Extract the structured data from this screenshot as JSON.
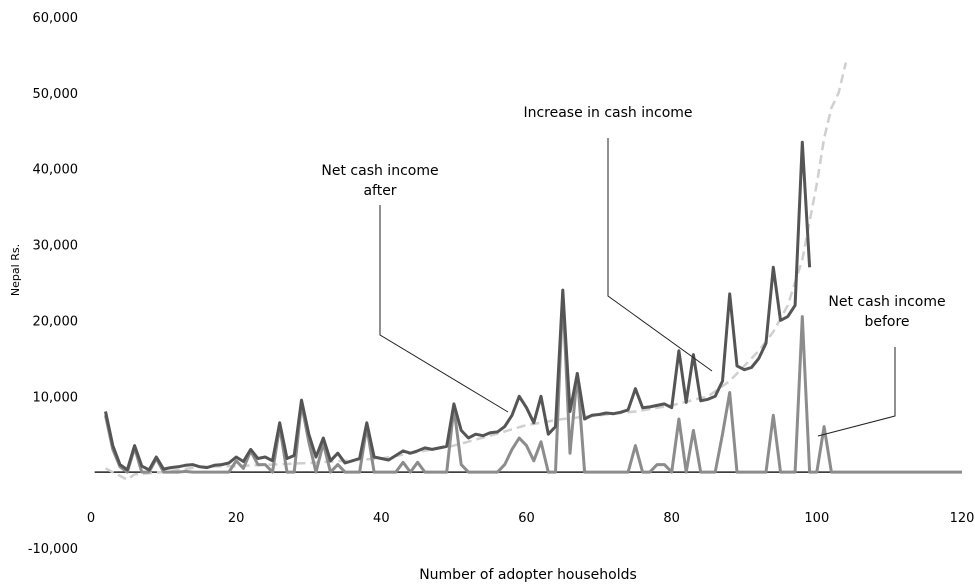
{
  "chart_data": {
    "type": "line",
    "xlabel": "Number of adopter households",
    "ylabel": "Nepal Rs.",
    "xlim": [
      0,
      120
    ],
    "ylim": [
      -10000,
      60000
    ],
    "x_ticks": [
      "0",
      "20",
      "40",
      "60",
      "80",
      "100",
      "120"
    ],
    "y_ticks": [
      "-10,000",
      "",
      "10,000",
      "20,000",
      "30,000",
      "40,000",
      "50,000",
      "60,000"
    ],
    "grid": false,
    "legend": "none",
    "colors": {
      "after": "#555555",
      "before": "#8c8c8c",
      "increase": "#cfcfcf",
      "axis": "#222222"
    },
    "annotations": [
      {
        "lines": [
          "Net cash income",
          "after"
        ]
      },
      {
        "lines": [
          "Increase in cash income"
        ]
      },
      {
        "lines": [
          "Net cash income",
          "before"
        ]
      }
    ],
    "series": [
      {
        "key": "after",
        "values": [
          [
            2,
            8000
          ],
          [
            3,
            3500
          ],
          [
            4,
            1000
          ],
          [
            5,
            300
          ],
          [
            6,
            3500
          ],
          [
            7,
            800
          ],
          [
            8,
            300
          ],
          [
            9,
            2000
          ],
          [
            10,
            400
          ],
          [
            11,
            600
          ],
          [
            12,
            700
          ],
          [
            13,
            900
          ],
          [
            14,
            1000
          ],
          [
            15,
            700
          ],
          [
            16,
            600
          ],
          [
            17,
            900
          ],
          [
            18,
            1000
          ],
          [
            19,
            1200
          ],
          [
            20,
            2000
          ],
          [
            21,
            1400
          ],
          [
            22,
            3000
          ],
          [
            23,
            1800
          ],
          [
            24,
            2000
          ],
          [
            25,
            1500
          ],
          [
            26,
            6500
          ],
          [
            27,
            1800
          ],
          [
            28,
            2200
          ],
          [
            29,
            9500
          ],
          [
            30,
            5000
          ],
          [
            31,
            2000
          ],
          [
            32,
            4500
          ],
          [
            33,
            1500
          ],
          [
            34,
            2500
          ],
          [
            35,
            1200
          ],
          [
            36,
            1500
          ],
          [
            37,
            1800
          ],
          [
            38,
            6500
          ],
          [
            39,
            2000
          ],
          [
            40,
            1800
          ],
          [
            41,
            1600
          ],
          [
            42,
            2200
          ],
          [
            43,
            2800
          ],
          [
            44,
            2500
          ],
          [
            45,
            2800
          ],
          [
            46,
            3200
          ],
          [
            47,
            3000
          ],
          [
            48,
            3200
          ],
          [
            49,
            3400
          ],
          [
            50,
            9000
          ],
          [
            51,
            5500
          ],
          [
            52,
            4500
          ],
          [
            53,
            5000
          ],
          [
            54,
            4800
          ],
          [
            55,
            5200
          ],
          [
            56,
            5300
          ],
          [
            57,
            6000
          ],
          [
            58,
            7500
          ],
          [
            59,
            10000
          ],
          [
            60,
            8500
          ],
          [
            61,
            6500
          ],
          [
            62,
            10000
          ],
          [
            63,
            5000
          ],
          [
            64,
            6000
          ],
          [
            65,
            24000
          ],
          [
            66,
            8000
          ],
          [
            67,
            13000
          ],
          [
            68,
            7000
          ],
          [
            69,
            7500
          ],
          [
            70,
            7600
          ],
          [
            71,
            7800
          ],
          [
            72,
            7700
          ],
          [
            73,
            7900
          ],
          [
            74,
            8200
          ],
          [
            75,
            11000
          ],
          [
            76,
            8500
          ],
          [
            77,
            8600
          ],
          [
            78,
            8800
          ],
          [
            79,
            9000
          ],
          [
            80,
            8500
          ],
          [
            81,
            16000
          ],
          [
            82,
            9200
          ],
          [
            83,
            15500
          ],
          [
            84,
            9400
          ],
          [
            85,
            9600
          ],
          [
            86,
            10000
          ],
          [
            87,
            12000
          ],
          [
            88,
            23500
          ],
          [
            89,
            14000
          ],
          [
            90,
            13500
          ],
          [
            91,
            13800
          ],
          [
            92,
            15000
          ],
          [
            93,
            17000
          ],
          [
            94,
            27000
          ],
          [
            95,
            20000
          ],
          [
            96,
            20500
          ],
          [
            97,
            22000
          ],
          [
            98,
            43500
          ],
          [
            99,
            27000
          ]
        ]
      },
      {
        "key": "before",
        "values": [
          [
            2,
            7500
          ],
          [
            3,
            3000
          ],
          [
            4,
            700
          ],
          [
            5,
            0
          ],
          [
            6,
            3200
          ],
          [
            7,
            0
          ],
          [
            8,
            0
          ],
          [
            9,
            1800
          ],
          [
            10,
            0
          ],
          [
            11,
            0
          ],
          [
            12,
            0
          ],
          [
            13,
            100
          ],
          [
            14,
            0
          ],
          [
            15,
            0
          ],
          [
            16,
            0
          ],
          [
            17,
            0
          ],
          [
            18,
            0
          ],
          [
            19,
            0
          ],
          [
            20,
            1500
          ],
          [
            21,
            500
          ],
          [
            22,
            2800
          ],
          [
            23,
            1000
          ],
          [
            24,
            1000
          ],
          [
            25,
            0
          ],
          [
            26,
            6000
          ],
          [
            27,
            0
          ],
          [
            28,
            0
          ],
          [
            29,
            9000
          ],
          [
            30,
            4000
          ],
          [
            31,
            0
          ],
          [
            32,
            3800
          ],
          [
            33,
            0
          ],
          [
            34,
            1000
          ],
          [
            35,
            0
          ],
          [
            36,
            0
          ],
          [
            37,
            0
          ],
          [
            38,
            6000
          ],
          [
            39,
            0
          ],
          [
            40,
            0
          ],
          [
            41,
            0
          ],
          [
            42,
            0
          ],
          [
            43,
            1300
          ],
          [
            44,
            0
          ],
          [
            45,
            1300
          ],
          [
            46,
            0
          ],
          [
            47,
            0
          ],
          [
            48,
            0
          ],
          [
            49,
            0
          ],
          [
            50,
            8500
          ],
          [
            51,
            1000
          ],
          [
            52,
            0
          ],
          [
            53,
            0
          ],
          [
            54,
            0
          ],
          [
            55,
            0
          ],
          [
            56,
            0
          ],
          [
            57,
            1000
          ],
          [
            58,
            3000
          ],
          [
            59,
            4500
          ],
          [
            60,
            3500
          ],
          [
            61,
            1500
          ],
          [
            62,
            4000
          ],
          [
            63,
            0
          ],
          [
            64,
            0
          ],
          [
            65,
            23500
          ],
          [
            66,
            2500
          ],
          [
            67,
            13000
          ],
          [
            68,
            0
          ],
          [
            69,
            0
          ],
          [
            70,
            0
          ],
          [
            71,
            0
          ],
          [
            72,
            0
          ],
          [
            73,
            0
          ],
          [
            74,
            0
          ],
          [
            75,
            3500
          ],
          [
            76,
            0
          ],
          [
            77,
            0
          ],
          [
            78,
            1000
          ],
          [
            79,
            1000
          ],
          [
            80,
            0
          ],
          [
            81,
            7000
          ],
          [
            82,
            0
          ],
          [
            83,
            5500
          ],
          [
            84,
            0
          ],
          [
            85,
            0
          ],
          [
            86,
            0
          ],
          [
            87,
            5000
          ],
          [
            88,
            10500
          ],
          [
            89,
            0
          ],
          [
            90,
            0
          ],
          [
            91,
            0
          ],
          [
            92,
            0
          ],
          [
            93,
            0
          ],
          [
            94,
            7500
          ],
          [
            95,
            0
          ],
          [
            96,
            0
          ],
          [
            97,
            0
          ],
          [
            98,
            20500
          ],
          [
            99,
            0
          ],
          [
            100,
            0
          ],
          [
            101,
            6000
          ],
          [
            102,
            0
          ],
          [
            103,
            0
          ],
          [
            104,
            0
          ],
          [
            120,
            0
          ]
        ]
      },
      {
        "key": "increase",
        "values": [
          [
            2,
            500
          ],
          [
            4,
            -500
          ],
          [
            5,
            -1000
          ],
          [
            6,
            -300
          ],
          [
            10,
            0
          ],
          [
            15,
            700
          ],
          [
            20,
            800
          ],
          [
            30,
            1200
          ],
          [
            40,
            1800
          ],
          [
            50,
            3500
          ],
          [
            55,
            4800
          ],
          [
            60,
            6200
          ],
          [
            65,
            7000
          ],
          [
            70,
            7500
          ],
          [
            75,
            8000
          ],
          [
            80,
            8800
          ],
          [
            85,
            10000
          ],
          [
            88,
            12000
          ],
          [
            90,
            14000
          ],
          [
            92,
            16000
          ],
          [
            94,
            18500
          ],
          [
            96,
            22000
          ],
          [
            98,
            28000
          ],
          [
            100,
            38000
          ],
          [
            101,
            44000
          ],
          [
            102,
            48000
          ],
          [
            103,
            50000
          ],
          [
            104,
            54000
          ]
        ]
      }
    ]
  }
}
